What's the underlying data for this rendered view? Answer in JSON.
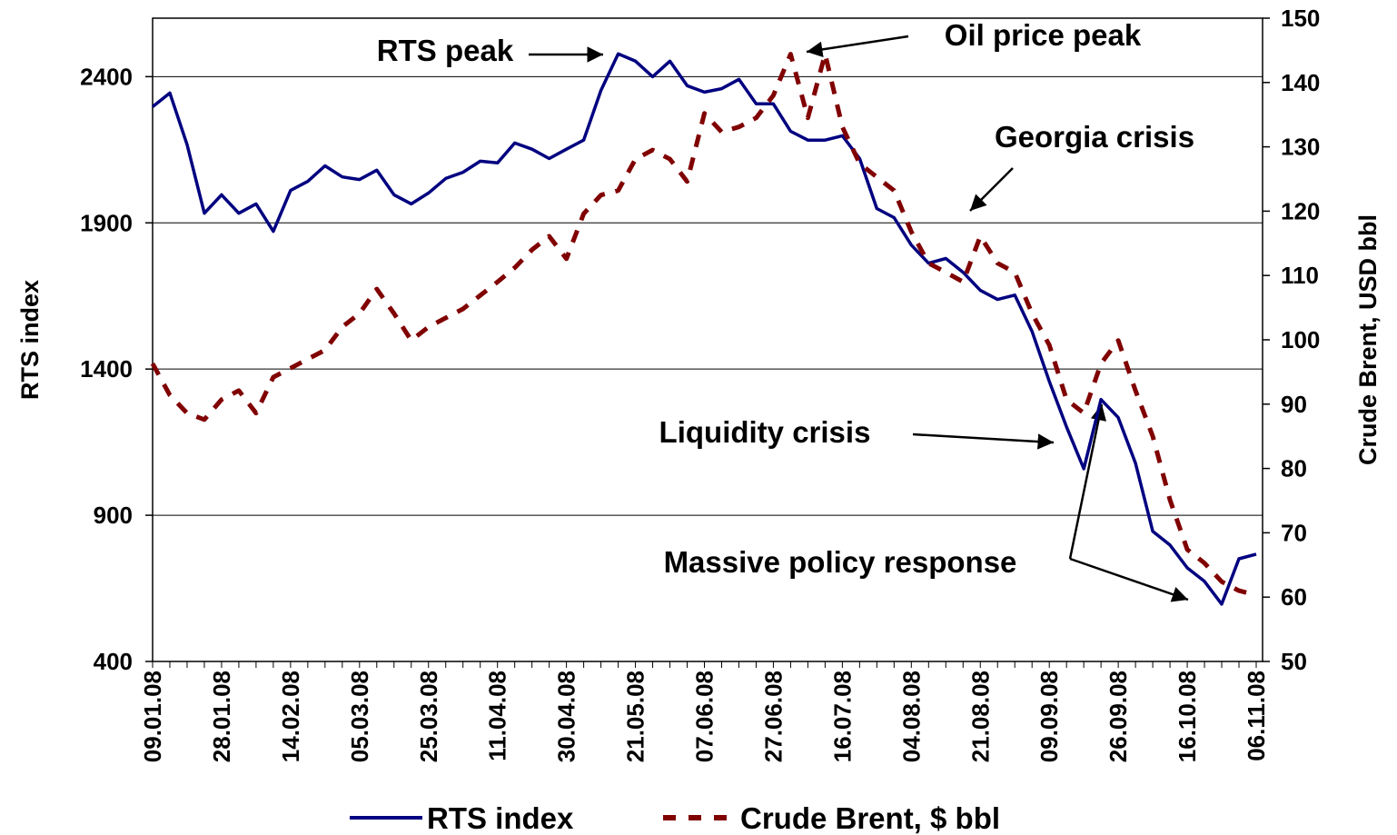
{
  "chart_data": {
    "type": "line",
    "y_label": "RTS index",
    "y2_label": "Crude Brent, USD bbl",
    "categories": [
      "09.01.08",
      null,
      null,
      null,
      "28.01.08",
      null,
      null,
      null,
      "14.02.08",
      null,
      null,
      null,
      "05.03.08",
      null,
      null,
      null,
      "25.03.08",
      null,
      null,
      null,
      "11.04.08",
      null,
      null,
      null,
      "30.04.08",
      null,
      null,
      null,
      "21.05.08",
      null,
      null,
      null,
      "07.06.08",
      null,
      null,
      null,
      "27.06.08",
      null,
      null,
      null,
      "16.07.08",
      null,
      null,
      null,
      "04.08.08",
      null,
      null,
      null,
      "21.08.08",
      null,
      null,
      null,
      "09.09.08",
      null,
      null,
      null,
      "26.09.08",
      null,
      null,
      null,
      "16.10.08",
      null,
      null,
      null,
      "06.11.08"
    ],
    "series": [
      {
        "name": "RTS index",
        "color": "#000080",
        "axis": "y",
        "dash": false,
        "values": [
          2297,
          2344,
          2167,
          1933,
          1996,
          1933,
          1965,
          1871,
          2011,
          2042,
          2095,
          2057,
          2048,
          2080,
          1996,
          1965,
          2002,
          2052,
          2073,
          2111,
          2105,
          2173,
          2152,
          2120,
          2152,
          2183,
          2353,
          2478,
          2453,
          2400,
          2453,
          2369,
          2347,
          2359,
          2391,
          2307,
          2307,
          2213,
          2183,
          2183,
          2198,
          2120,
          1949,
          1918,
          1824,
          1762,
          1778,
          1731,
          1669,
          1638,
          1653,
          1529,
          1358,
          1202,
          1059,
          1296,
          1234,
          1078,
          845,
          798,
          720,
          674,
          596,
          751,
          767
        ]
      },
      {
        "name": "Crude Brent, $ bbl",
        "color": "#800000",
        "axis": "y2",
        "dash": true,
        "values": [
          96.3,
          91.4,
          88.6,
          87.6,
          90.7,
          92.1,
          88.6,
          94.2,
          95.6,
          97.0,
          98.4,
          102.0,
          104.1,
          107.9,
          104.1,
          99.9,
          102.0,
          103.4,
          104.8,
          106.9,
          109.0,
          111.2,
          114.0,
          116.1,
          112.6,
          119.6,
          122.5,
          123.2,
          128.1,
          129.5,
          128.1,
          124.6,
          135.2,
          132.3,
          133.1,
          134.5,
          138.0,
          144.4,
          134.5,
          144.4,
          133.1,
          127.4,
          125.3,
          123.2,
          116.8,
          111.9,
          110.5,
          109.0,
          116.1,
          111.9,
          110.5,
          104.1,
          99.2,
          90.7,
          88.6,
          96.3,
          99.9,
          92.1,
          85.0,
          75.1,
          67.4,
          65.3,
          62.4,
          61.0,
          60.3
        ]
      }
    ],
    "ylim": [
      400,
      2600
    ],
    "yticks": [
      400,
      900,
      1400,
      1900,
      2400
    ],
    "y2lim": [
      50,
      150
    ],
    "y2ticks": [
      50,
      60,
      70,
      80,
      90,
      100,
      110,
      120,
      130,
      140,
      150
    ],
    "grid": true,
    "legend": "bottom",
    "annotations": [
      "RTS peak",
      "Oil price peak",
      "Georgia crisis",
      "Liquidity crisis",
      "Massive policy response"
    ]
  }
}
